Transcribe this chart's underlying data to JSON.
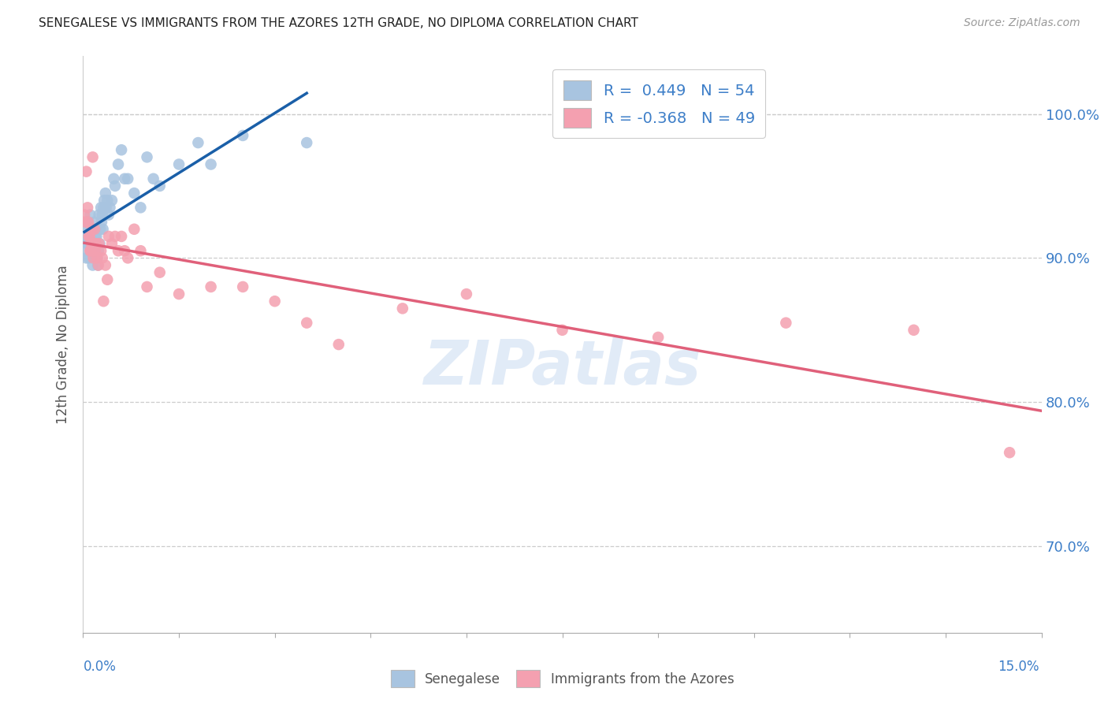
{
  "title": "SENEGALESE VS IMMIGRANTS FROM THE AZORES 12TH GRADE, NO DIPLOMA CORRELATION CHART",
  "source": "Source: ZipAtlas.com",
  "ylabel": "12th Grade, No Diploma",
  "legend_label_blue": "Senegalese",
  "legend_label_pink": "Immigrants from the Azores",
  "R_blue": 0.449,
  "N_blue": 54,
  "R_pink": -0.368,
  "N_pink": 49,
  "xlim": [
    0.0,
    15.0
  ],
  "ylim": [
    64.0,
    104.0
  ],
  "yticks": [
    70.0,
    80.0,
    90.0,
    100.0
  ],
  "color_blue_scatter": "#a8c4e0",
  "color_blue_line": "#1a5fa8",
  "color_pink_scatter": "#f4a0b0",
  "color_pink_line": "#e0607a",
  "color_axis_label": "#3d7ec8",
  "background": "#ffffff",
  "watermark": "ZIPatlas",
  "blue_x": [
    0.02,
    0.03,
    0.04,
    0.05,
    0.06,
    0.07,
    0.08,
    0.09,
    0.1,
    0.11,
    0.12,
    0.13,
    0.14,
    0.15,
    0.16,
    0.17,
    0.18,
    0.19,
    0.2,
    0.21,
    0.22,
    0.23,
    0.24,
    0.25,
    0.26,
    0.27,
    0.28,
    0.29,
    0.3,
    0.31,
    0.32,
    0.33,
    0.35,
    0.36,
    0.38,
    0.4,
    0.42,
    0.45,
    0.48,
    0.5,
    0.55,
    0.6,
    0.65,
    0.7,
    0.8,
    0.9,
    1.0,
    1.1,
    1.2,
    1.5,
    1.8,
    2.0,
    2.5,
    3.5
  ],
  "blue_y": [
    92.0,
    91.5,
    90.5,
    90.0,
    91.0,
    92.5,
    91.0,
    90.0,
    92.0,
    93.0,
    91.5,
    92.0,
    90.5,
    89.5,
    91.0,
    90.5,
    92.5,
    91.5,
    92.0,
    91.5,
    90.0,
    89.5,
    90.5,
    93.0,
    91.0,
    92.0,
    93.5,
    92.5,
    93.0,
    92.0,
    93.5,
    94.0,
    94.5,
    93.5,
    94.0,
    93.0,
    93.5,
    94.0,
    95.5,
    95.0,
    96.5,
    97.5,
    95.5,
    95.5,
    94.5,
    93.5,
    97.0,
    95.5,
    95.0,
    96.5,
    98.0,
    96.5,
    98.5,
    98.0
  ],
  "pink_x": [
    0.02,
    0.03,
    0.05,
    0.07,
    0.08,
    0.09,
    0.1,
    0.11,
    0.12,
    0.13,
    0.14,
    0.15,
    0.16,
    0.17,
    0.18,
    0.19,
    0.2,
    0.22,
    0.24,
    0.25,
    0.28,
    0.3,
    0.35,
    0.4,
    0.45,
    0.5,
    0.55,
    0.6,
    0.65,
    0.7,
    0.8,
    0.9,
    1.0,
    1.2,
    1.5,
    2.0,
    2.5,
    3.0,
    3.5,
    4.0,
    5.0,
    6.0,
    7.5,
    9.0,
    11.0,
    13.0,
    14.5,
    0.32,
    0.38
  ],
  "pink_y": [
    93.0,
    92.5,
    96.0,
    93.5,
    92.5,
    91.5,
    91.5,
    90.5,
    90.5,
    91.0,
    92.0,
    97.0,
    90.0,
    91.0,
    92.0,
    90.5,
    91.0,
    90.0,
    89.5,
    91.0,
    90.5,
    90.0,
    89.5,
    91.5,
    91.0,
    91.5,
    90.5,
    91.5,
    90.5,
    90.0,
    92.0,
    90.5,
    88.0,
    89.0,
    87.5,
    88.0,
    88.0,
    87.0,
    85.5,
    84.0,
    86.5,
    87.5,
    85.0,
    84.5,
    85.5,
    85.0,
    76.5,
    87.0,
    88.5
  ]
}
